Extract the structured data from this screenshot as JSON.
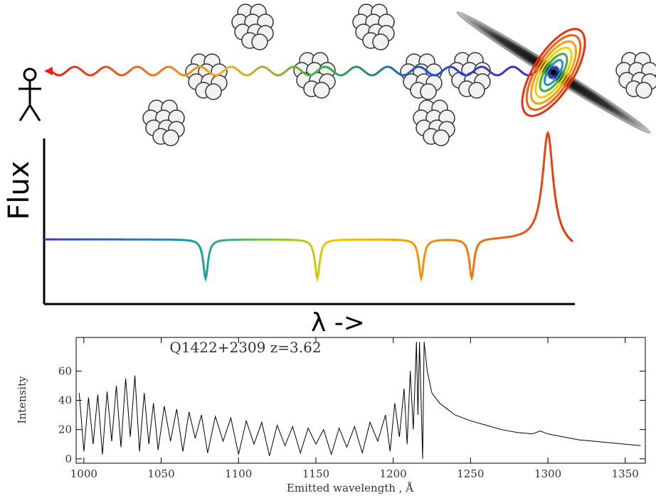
{
  "diagram": {
    "y_label": "Flux",
    "x_label": "λ ->"
  },
  "chart_data": {
    "type": "line",
    "title": "Q1422+2309  z=3.62",
    "x_label": "Emitted wavelength , Å",
    "y_label": "Intensity",
    "color": "#000000",
    "xlim": [
      995,
      1363
    ],
    "ylim": [
      -3,
      83
    ],
    "xticks": [
      1000,
      1050,
      1100,
      1150,
      1200,
      1250,
      1300,
      1350
    ],
    "yticks": [
      0,
      20,
      40,
      60
    ],
    "x": [
      997,
      1000,
      1003,
      1006,
      1009,
      1012,
      1015,
      1018,
      1021,
      1024,
      1027,
      1030,
      1033,
      1036,
      1039,
      1042,
      1045,
      1048,
      1052,
      1056,
      1060,
      1064,
      1068,
      1072,
      1076,
      1080,
      1085,
      1090,
      1095,
      1100,
      1105,
      1110,
      1115,
      1120,
      1125,
      1130,
      1135,
      1140,
      1145,
      1150,
      1155,
      1160,
      1165,
      1170,
      1175,
      1180,
      1185,
      1190,
      1195,
      1198,
      1201,
      1204,
      1207,
      1209,
      1211,
      1213,
      1215,
      1216,
      1217,
      1219,
      1220,
      1222,
      1225,
      1230,
      1235,
      1240,
      1245,
      1250,
      1260,
      1270,
      1280,
      1290,
      1295,
      1300,
      1310,
      1320,
      1330,
      1340,
      1350,
      1360
    ],
    "values": [
      45,
      5,
      42,
      10,
      44,
      3,
      46,
      12,
      50,
      8,
      55,
      15,
      57,
      5,
      45,
      10,
      38,
      6,
      36,
      12,
      34,
      5,
      32,
      14,
      30,
      4,
      29,
      12,
      28,
      3,
      26,
      10,
      25,
      2,
      23,
      9,
      22,
      4,
      21,
      10,
      20,
      3,
      21,
      8,
      22,
      4,
      25,
      12,
      30,
      5,
      38,
      15,
      48,
      10,
      60,
      20,
      80,
      30,
      80,
      0,
      80,
      60,
      45,
      38,
      34,
      30,
      28,
      26,
      23,
      20,
      18,
      17,
      19,
      17,
      15,
      13,
      12,
      11,
      10,
      9
    ]
  }
}
